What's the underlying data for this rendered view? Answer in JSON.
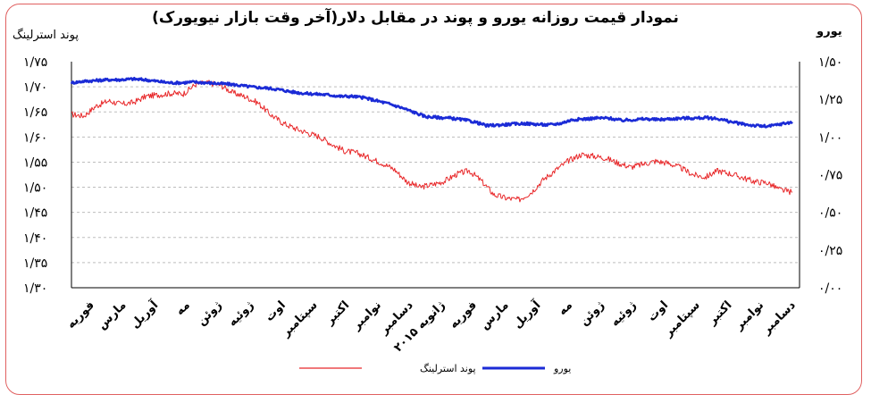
{
  "chart_data": {
    "type": "line",
    "title": "نمودار قیمت روزانه  یورو و پوند در مقابل دلار(آخر وقت بازار نیویورک)",
    "y_left_label": "پوند استرلینگ",
    "y_right_label": "یورو",
    "y_left_ticks": [
      "۱/۷۵",
      "۱/۷۰",
      "۱/۶۵",
      "۱/۶۰",
      "۱/۵۵",
      "۱/۵۰",
      "۱/۴۵",
      "۱/۴۰",
      "۱/۳۵",
      "۱/۳۰"
    ],
    "y_right_ticks": [
      "۱/۵۰",
      "۱/۲۵",
      "۱/۰۰",
      "۰/۷۵",
      "۰/۵۰",
      "۰/۲۵",
      "۰/۰۰"
    ],
    "ylim_left": [
      1.3,
      1.75
    ],
    "ylim_right": [
      0.0,
      1.5
    ],
    "grid": true,
    "legend_position": "bottom",
    "x_tick_labels": [
      "فوریه",
      "مارس",
      "آوریل",
      "مه",
      "ژوئن",
      "ژوئیه",
      "اوت",
      "سپتامبر",
      "اکتبر",
      "نوامبر",
      "دسامبر",
      "ژانویه ۲۰۱۵",
      "فوریه",
      "مارس",
      "آوریل",
      "مه",
      "ژوئن",
      "ژوئیه",
      "اوت",
      "سپتامبر",
      "اکتبر",
      "نوامبر",
      "دسامبر"
    ],
    "series": [
      {
        "name": "پوند استرلینگ",
        "axis": "left",
        "color": "#e8282a",
        "values": [
          1.645,
          1.642,
          1.662,
          1.672,
          1.665,
          1.669,
          1.681,
          1.684,
          1.687,
          1.686,
          1.705,
          1.708,
          1.703,
          1.688,
          1.68,
          1.668,
          1.645,
          1.628,
          1.617,
          1.608,
          1.6,
          1.585,
          1.572,
          1.568,
          1.558,
          1.548,
          1.535,
          1.511,
          1.5,
          1.505,
          1.512,
          1.526,
          1.533,
          1.512,
          1.485,
          1.478,
          1.475,
          1.49,
          1.516,
          1.535,
          1.553,
          1.565,
          1.562,
          1.558,
          1.548,
          1.54,
          1.546,
          1.552,
          1.548,
          1.539,
          1.525,
          1.52,
          1.533,
          1.527,
          1.519,
          1.511,
          1.509,
          1.495,
          1.49
        ]
      },
      {
        "name": "یورو",
        "axis": "right",
        "color": "#1b2bd6",
        "values": [
          1.36,
          1.37,
          1.375,
          1.38,
          1.38,
          1.385,
          1.38,
          1.37,
          1.36,
          1.36,
          1.365,
          1.36,
          1.355,
          1.35,
          1.34,
          1.33,
          1.325,
          1.315,
          1.3,
          1.29,
          1.285,
          1.28,
          1.27,
          1.27,
          1.26,
          1.24,
          1.22,
          1.195,
          1.165,
          1.135,
          1.13,
          1.125,
          1.115,
          1.1,
          1.075,
          1.08,
          1.085,
          1.09,
          1.085,
          1.08,
          1.09,
          1.115,
          1.12,
          1.125,
          1.125,
          1.11,
          1.115,
          1.12,
          1.115,
          1.12,
          1.125,
          1.125,
          1.128,
          1.12,
          1.1,
          1.085,
          1.075,
          1.07,
          1.085,
          1.1
        ]
      }
    ]
  }
}
